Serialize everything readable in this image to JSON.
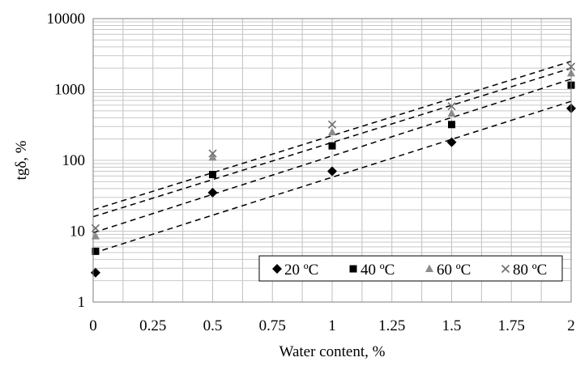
{
  "chart_data": {
    "type": "scatter",
    "title": "",
    "xlabel": "Water content, %",
    "ylabel": "tgδ, %",
    "xlim": [
      0,
      2
    ],
    "ylim": [
      1,
      10000
    ],
    "y_scale": "log",
    "grid": true,
    "legend_position": "bottom-right",
    "x_ticks": [
      "0",
      "0.25",
      "0.5",
      "0.75",
      "1",
      "1.25",
      "1.5",
      "1.75",
      "2"
    ],
    "y_ticks": [
      "1",
      "10",
      "100",
      "1000",
      "10000"
    ],
    "series": [
      {
        "name": "20 ºC",
        "marker": "diamond",
        "color": "#000000",
        "x": [
          0.01,
          0.5,
          1.0,
          1.5,
          2.0
        ],
        "y": [
          2.6,
          35,
          70,
          180,
          540
        ],
        "trend": [
          [
            0,
            4.9
          ],
          [
            2,
            680
          ]
        ]
      },
      {
        "name": "40 ºC",
        "marker": "square",
        "color": "#000000",
        "x": [
          0.01,
          0.5,
          1.0,
          1.5,
          2.0
        ],
        "y": [
          5.2,
          63,
          160,
          320,
          1150
        ],
        "trend": [
          [
            0,
            9.5
          ],
          [
            2,
            1400
          ]
        ]
      },
      {
        "name": "60 ºC",
        "marker": "triangle",
        "color": "#8c8c8c",
        "x": [
          0.01,
          0.5,
          1.0,
          1.5,
          2.0
        ],
        "y": [
          8.5,
          110,
          250,
          460,
          1700
        ],
        "trend": [
          [
            0,
            16
          ],
          [
            2,
            2000
          ]
        ]
      },
      {
        "name": "80 ºC",
        "marker": "x",
        "color": "#6e6e6e",
        "x": [
          0.01,
          0.5,
          1.0,
          1.5,
          2.0
        ],
        "y": [
          11,
          125,
          320,
          580,
          2100
        ],
        "trend": [
          [
            0,
            20
          ],
          [
            2,
            2500
          ]
        ]
      }
    ]
  }
}
